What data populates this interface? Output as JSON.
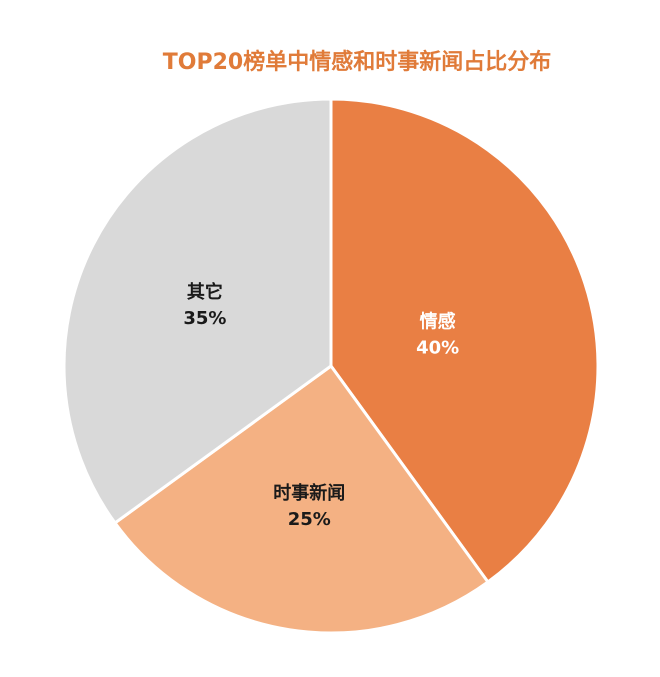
{
  "chart_data": {
    "type": "pie",
    "title": "TOP20榜单中情感和时事新闻占比分布",
    "categories": [
      "情感",
      "时事新闻",
      "其它"
    ],
    "values": [
      40,
      25,
      35
    ],
    "value_labels": [
      "40%",
      "25%",
      "35%"
    ],
    "colors": [
      "#e97f44",
      "#f4b183",
      "#d9d9d9"
    ],
    "label_colors": [
      "#ffffff",
      "#1a1a1a",
      "#1a1a1a"
    ],
    "start_angle": "12 o'clock, clockwise",
    "legend": "none (labels inside slices)"
  },
  "title_color": "#e07b39"
}
